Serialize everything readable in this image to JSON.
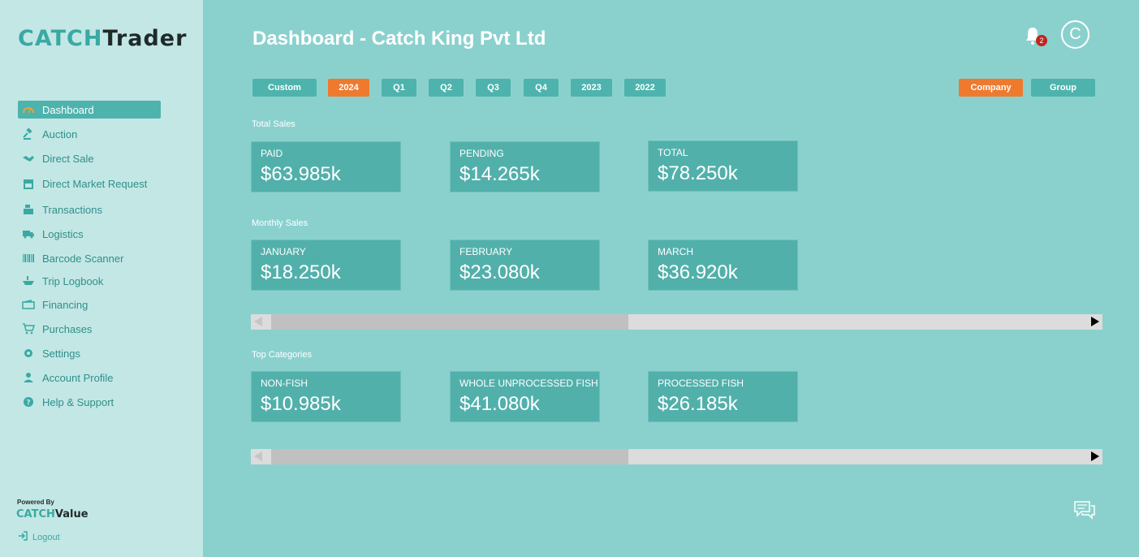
{
  "brand": {
    "logo_catch": "CATCH",
    "logo_trader": "Trader",
    "powered_by": "Powered By",
    "powered_logo_catch": "CATCH",
    "powered_logo_value": "Value",
    "accent": "#3aa9a3",
    "orange": "#ef7a2e"
  },
  "sidebar": {
    "items": [
      {
        "label": "Dashboard",
        "icon": "gauge-icon"
      },
      {
        "label": "Auction",
        "icon": "gavel-icon"
      },
      {
        "label": "Direct Sale",
        "icon": "handshake-icon"
      },
      {
        "label": "Direct Market Request",
        "icon": "store-icon"
      },
      {
        "label": "Transactions",
        "icon": "cash-register-icon"
      },
      {
        "label": "Logistics",
        "icon": "truck-icon"
      },
      {
        "label": "Barcode Scanner",
        "icon": "barcode-icon"
      },
      {
        "label": "Trip Logbook",
        "icon": "ship-icon"
      },
      {
        "label": "Financing",
        "icon": "wallet-icon"
      },
      {
        "label": "Purchases",
        "icon": "cart-icon"
      },
      {
        "label": "Settings",
        "icon": "gear-icon"
      },
      {
        "label": "Account Profile",
        "icon": "user-icon"
      },
      {
        "label": "Help & Support",
        "icon": "question-icon"
      }
    ],
    "logout": "Logout"
  },
  "header": {
    "title": "Dashboard - Catch King Pvt Ltd",
    "notification_count": "2",
    "avatar_initial": "C"
  },
  "filters": {
    "periods": [
      "Custom",
      "2024",
      "Q1",
      "Q2",
      "Q3",
      "Q4",
      "2023",
      "2022"
    ],
    "active_period": "2024",
    "scope": [
      "Company",
      "Group"
    ],
    "active_scope": "Company"
  },
  "total_sales": {
    "label": "Total Sales",
    "cards": [
      {
        "label": "PAID",
        "value": "$63.985k"
      },
      {
        "label": "PENDING",
        "value": "$14.265k"
      },
      {
        "label": "TOTAL",
        "value": "$78.250k"
      }
    ]
  },
  "monthly_sales": {
    "label": "Monthly Sales",
    "cards": [
      {
        "label": "JANUARY",
        "value": "$18.250k"
      },
      {
        "label": "FEBRUARY",
        "value": "$23.080k"
      },
      {
        "label": "MARCH",
        "value": "$36.920k"
      }
    ]
  },
  "top_categories": {
    "label": "Top Categories",
    "cards": [
      {
        "label": "NON-FISH",
        "value": "$10.985k"
      },
      {
        "label": "WHOLE UNPROCESSED FISH",
        "value": "$41.080k"
      },
      {
        "label": "PROCESSED FISH",
        "value": "$26.185k"
      }
    ]
  }
}
